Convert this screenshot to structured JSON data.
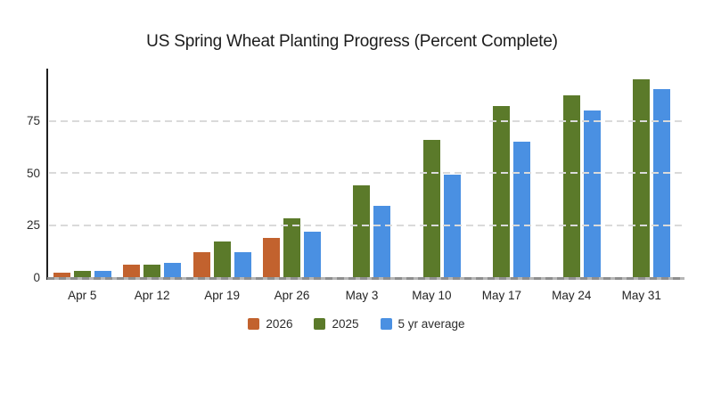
{
  "title": "US Spring Wheat Planting Progress (Percent Complete)",
  "chart_data": {
    "type": "bar",
    "title": "US Spring Wheat Planting Progress (Percent Complete)",
    "categories": [
      "Apr 5",
      "Apr 12",
      "Apr 19",
      "Apr 26",
      "May 3",
      "May 10",
      "May 17",
      "May 24",
      "May 31"
    ],
    "series": [
      {
        "name": "2026",
        "color": "#c2622e",
        "values": [
          2,
          6,
          12,
          19,
          null,
          null,
          null,
          null,
          null
        ]
      },
      {
        "name": "2025",
        "color": "#5b7a2a",
        "values": [
          3,
          6,
          17,
          28,
          44,
          66,
          82,
          87,
          95
        ]
      },
      {
        "name": "5 yr average",
        "color": "#4a90e2",
        "values": [
          3,
          7,
          12,
          22,
          34,
          49,
          65,
          80,
          90
        ]
      }
    ],
    "xlabel": "",
    "ylabel": "",
    "ylim": [
      0,
      100
    ],
    "yticks": [
      0,
      25,
      50,
      75
    ],
    "grid": "horizontal-dashed",
    "legend_position": "bottom",
    "colors": {
      "grid": "#dadada",
      "y_axis": "#1f1f1f",
      "baseline": "#8e8e8e",
      "text": "#2d2d2d",
      "background": "#ffffff"
    }
  }
}
